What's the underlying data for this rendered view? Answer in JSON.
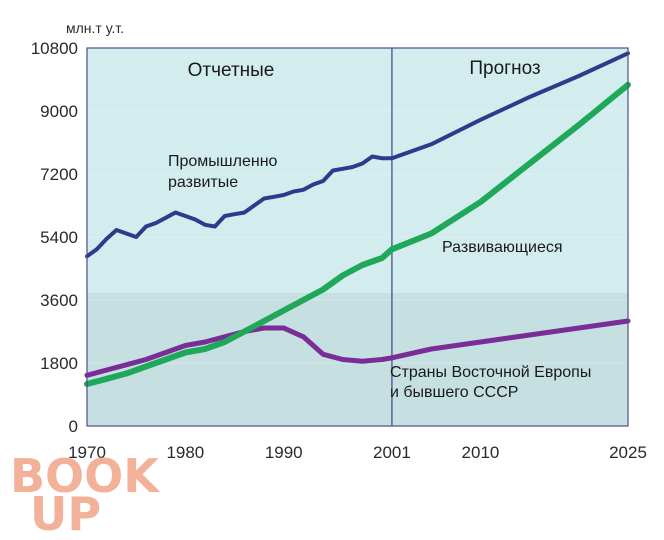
{
  "chart_data": {
    "type": "line",
    "unit_label": "млн.т у.т.",
    "x_ticks": [
      1970,
      1980,
      1990,
      2001,
      2010,
      2025
    ],
    "y_ticks": [
      0,
      1800,
      3600,
      5400,
      7200,
      9000,
      10800
    ],
    "xlim": [
      1970,
      2025
    ],
    "ylim": [
      0,
      10800
    ],
    "divider_year": 2001,
    "section_labels": [
      "Отчетные",
      "Прогноз"
    ],
    "colors": {
      "upper_background": "#d3ecee",
      "lower_background": "#c6dfe0",
      "frame": "#4a4f8a"
    },
    "series": [
      {
        "name": "Промышленно развитые",
        "label_lines": [
          "Промышленно",
          "развитые"
        ],
        "color": "#2e3a8c",
        "x": [
          1970,
          1971,
          1972,
          1973,
          1974,
          1975,
          1976,
          1977,
          1978,
          1979,
          1980,
          1981,
          1982,
          1983,
          1984,
          1985,
          1986,
          1987,
          1988,
          1989,
          1990,
          1991,
          1992,
          1993,
          1994,
          1995,
          1996,
          1997,
          1998,
          1999,
          2000,
          2001,
          2005,
          2010,
          2015,
          2020,
          2025
        ],
        "values": [
          4850,
          5050,
          5350,
          5600,
          5500,
          5400,
          5700,
          5800,
          5950,
          6100,
          6000,
          5900,
          5750,
          5700,
          6000,
          6050,
          6100,
          6300,
          6500,
          6550,
          6600,
          6700,
          6750,
          6900,
          7000,
          7300,
          7350,
          7400,
          7500,
          7700,
          7650,
          7650,
          8050,
          8750,
          9400,
          10000,
          10650
        ]
      },
      {
        "name": "Развивающиеся",
        "label_lines": [
          "Развивающиеся"
        ],
        "color": "#1fa85a",
        "x": [
          1970,
          1972,
          1974,
          1976,
          1978,
          1980,
          1982,
          1984,
          1986,
          1988,
          1990,
          1992,
          1994,
          1996,
          1998,
          2000,
          2001,
          2005,
          2010,
          2015,
          2020,
          2025
        ],
        "values": [
          1200,
          1350,
          1500,
          1700,
          1900,
          2100,
          2200,
          2400,
          2700,
          3000,
          3300,
          3600,
          3900,
          4300,
          4600,
          4800,
          5050,
          5500,
          6400,
          7500,
          8600,
          9750
        ]
      },
      {
        "name": "Страны Восточной Европы и бывшего СССР",
        "label_lines": [
          "Страны Восточной Европы",
          "и бывшего СССР"
        ],
        "color": "#7a2d97",
        "x": [
          1970,
          1972,
          1974,
          1976,
          1978,
          1980,
          1982,
          1984,
          1986,
          1988,
          1990,
          1992,
          1994,
          1996,
          1998,
          2000,
          2001,
          2005,
          2010,
          2015,
          2020,
          2025
        ],
        "values": [
          1450,
          1600,
          1750,
          1900,
          2100,
          2300,
          2400,
          2550,
          2700,
          2800,
          2800,
          2550,
          2050,
          1900,
          1850,
          1900,
          1950,
          2200,
          2400,
          2600,
          2800,
          3000
        ]
      }
    ]
  },
  "watermark": {
    "line1": "BOOK",
    "line2": "UP"
  }
}
